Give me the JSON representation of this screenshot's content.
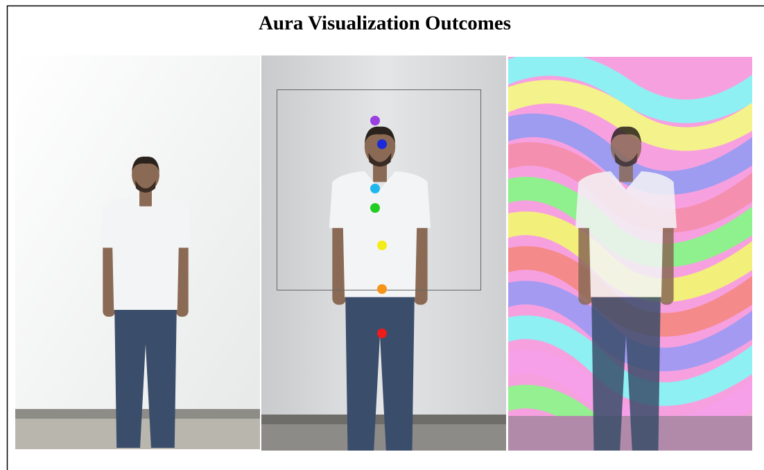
{
  "title": "Aura Visualization Outcomes"
}
